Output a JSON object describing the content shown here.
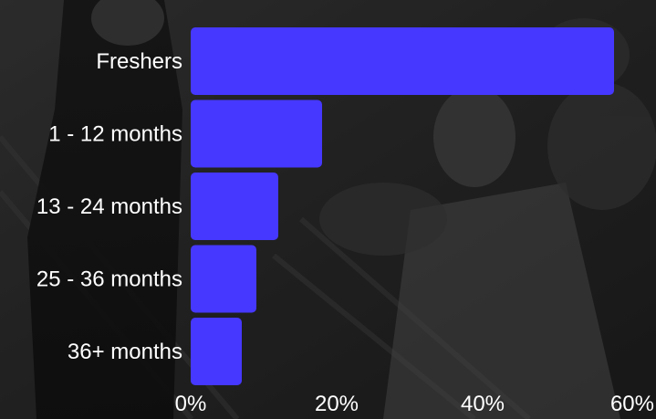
{
  "chart_data": {
    "type": "bar",
    "orientation": "horizontal",
    "categories": [
      "Freshers",
      "1 - 12 months",
      "13 - 24 months",
      "25 - 36 months",
      "36+ months"
    ],
    "values": [
      58,
      18,
      12,
      9,
      7
    ],
    "unit": "%",
    "xlim": [
      0,
      60
    ],
    "xticks": [
      "0%",
      "20%",
      "40%",
      "60%"
    ],
    "xtick_values": [
      0,
      20,
      40,
      60
    ],
    "title": "",
    "xlabel": "",
    "ylabel": "",
    "grid": false,
    "legend": "none",
    "bar_color": "#4638ff",
    "label_color": "#ffffff",
    "background": "dark monochrome photo of office workers"
  }
}
